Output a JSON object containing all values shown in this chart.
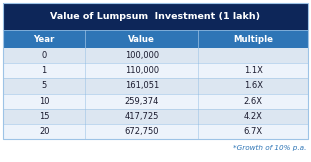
{
  "title": "Value of Lumpsum  Investment (1 lakh)",
  "headers": [
    "Year",
    "Value",
    "Multiple"
  ],
  "rows": [
    [
      "0",
      "100,000",
      ""
    ],
    [
      "1",
      "110,000",
      "1.1X"
    ],
    [
      "5",
      "161,051",
      "1.6X"
    ],
    [
      "10",
      "259,374",
      "2.6X"
    ],
    [
      "15",
      "417,725",
      "4.2X"
    ],
    [
      "20",
      "672,750",
      "6.7X"
    ]
  ],
  "footnote": "*Growth of 10% p.a.",
  "title_bg": "#0d2659",
  "header_bg": "#2e75b6",
  "row_bg_even": "#dce6f1",
  "row_bg_odd": "#edf3fb",
  "header_text_color": "#ffffff",
  "title_text_color": "#ffffff",
  "data_text_color": "#1a1a2e",
  "footnote_color": "#2e75b6",
  "border_color": "#9dc3e6",
  "outer_border_color": "#9dc3e6"
}
